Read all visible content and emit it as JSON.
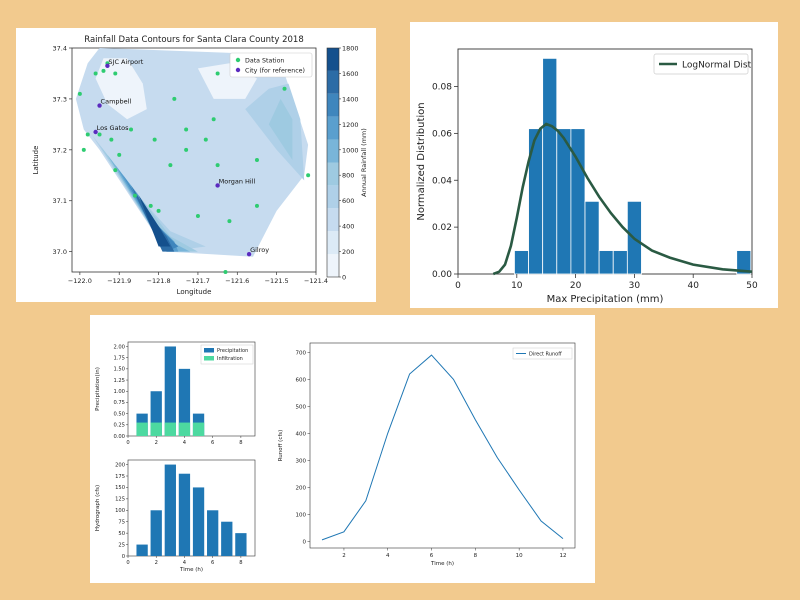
{
  "page": {
    "background": "#f2ca8e"
  },
  "chart_data": [
    {
      "type": "contour",
      "title": "Rainfall Data Contours for Santa Clara County 2018",
      "xlabel": "Longitude",
      "ylabel": "Latitude",
      "xlim": [
        -122.02,
        -121.4
      ],
      "ylim": [
        36.96,
        37.4
      ],
      "xticks": [
        -122.0,
        -121.9,
        -121.8,
        -121.7,
        -121.6,
        -121.5,
        -121.4
      ],
      "xtick_labels": [
        "−122.0",
        "−121.9",
        "−121.8",
        "−121.7",
        "−121.6",
        "−121.5",
        "−121.4"
      ],
      "yticks": [
        37.0,
        37.1,
        37.2,
        37.3,
        37.4
      ],
      "ytick_labels": [
        "37.0",
        "37.1",
        "37.2",
        "37.3",
        "37.4"
      ],
      "colorbar": {
        "label": "Annual Rainfall (mm)",
        "range": [
          0,
          1800
        ],
        "ticks": [
          0,
          200,
          400,
          600,
          800,
          1000,
          1200,
          1400,
          1600,
          1800
        ],
        "levels": [
          "#eef4fb",
          "#dceaf6",
          "#c6dbef",
          "#afd0e8",
          "#9ecae1",
          "#79b5d9",
          "#5a9fce",
          "#3f86bd",
          "#2c6ca6",
          "#14508d"
        ]
      },
      "legend": {
        "placement": "top-right",
        "entries": [
          "Data Station",
          "City (for reference)"
        ]
      },
      "station_color": "#2ecc71",
      "city_color": "#5b2bbf",
      "stations": [
        [
          -122.0,
          37.31
        ],
        [
          -121.96,
          37.35
        ],
        [
          -121.94,
          37.355
        ],
        [
          -121.93,
          37.37
        ],
        [
          -121.91,
          37.35
        ],
        [
          -121.98,
          37.23
        ],
        [
          -121.95,
          37.23
        ],
        [
          -121.99,
          37.2
        ],
        [
          -121.87,
          37.24
        ],
        [
          -121.92,
          37.22
        ],
        [
          -121.9,
          37.19
        ],
        [
          -121.91,
          37.16
        ],
        [
          -121.86,
          37.11
        ],
        [
          -121.82,
          37.09
        ],
        [
          -121.8,
          37.08
        ],
        [
          -121.77,
          37.17
        ],
        [
          -121.73,
          37.2
        ],
        [
          -121.68,
          37.22
        ],
        [
          -121.66,
          37.26
        ],
        [
          -121.73,
          37.24
        ],
        [
          -121.76,
          37.3
        ],
        [
          -121.65,
          37.17
        ],
        [
          -121.62,
          37.06
        ],
        [
          -121.65,
          37.35
        ],
        [
          -121.48,
          37.32
        ],
        [
          -121.55,
          37.18
        ],
        [
          -121.55,
          37.09
        ],
        [
          -121.42,
          37.15
        ],
        [
          -121.7,
          37.07
        ],
        [
          -121.63,
          36.96
        ],
        [
          -121.81,
          37.22
        ]
      ],
      "cities": [
        {
          "name": "SJC Airport",
          "lon": -121.93,
          "lat": 37.365
        },
        {
          "name": "Campbell",
          "lon": -121.95,
          "lat": 37.287
        },
        {
          "name": "Los Gatos",
          "lon": -121.96,
          "lat": 37.235
        },
        {
          "name": "Morgan Hill",
          "lon": -121.65,
          "lat": 37.13
        },
        {
          "name": "Gilroy",
          "lon": -121.57,
          "lat": 36.995
        }
      ],
      "region_outline": [
        [
          -121.95,
          37.4
        ],
        [
          -121.6,
          37.39
        ],
        [
          -121.48,
          37.35
        ],
        [
          -121.42,
          37.21
        ],
        [
          -121.43,
          37.15
        ],
        [
          -121.5,
          37.08
        ],
        [
          -121.56,
          36.99
        ],
        [
          -121.78,
          37.0
        ],
        [
          -121.95,
          37.2
        ],
        [
          -121.99,
          37.24
        ],
        [
          -122.01,
          37.3
        ],
        [
          -121.98,
          37.37
        ]
      ],
      "contours": [
        {
          "level": 1,
          "points": [
            [
              -121.99,
              37.25
            ],
            [
              -121.93,
              37.2
            ],
            [
              -121.86,
              37.12
            ],
            [
              -121.78,
              37.05
            ],
            [
              -121.68,
              37.02
            ],
            [
              -121.6,
              37.03
            ],
            [
              -121.55,
              37.0
            ],
            [
              -121.78,
              37.0
            ]
          ]
        },
        {
          "level": 2,
          "points": [
            [
              -121.97,
              37.23
            ],
            [
              -121.91,
              37.17
            ],
            [
              -121.84,
              37.1
            ],
            [
              -121.77,
              37.04
            ],
            [
              -121.68,
              37.01
            ],
            [
              -121.78,
              37.0
            ]
          ]
        },
        {
          "level": 3,
          "points": [
            [
              -121.95,
              37.21
            ],
            [
              -121.89,
              37.15
            ],
            [
              -121.83,
              37.09
            ],
            [
              -121.77,
              37.03
            ],
            [
              -121.7,
              37.0
            ],
            [
              -121.78,
              37.0
            ]
          ]
        },
        {
          "level": 4,
          "points": [
            [
              -121.93,
              37.19
            ],
            [
              -121.87,
              37.13
            ],
            [
              -121.82,
              37.07
            ],
            [
              -121.77,
              37.02
            ],
            [
              -121.72,
              37.0
            ],
            [
              -121.78,
              37.0
            ]
          ]
        },
        {
          "level": 5,
          "points": [
            [
              -121.91,
              37.17
            ],
            [
              -121.85,
              37.11
            ],
            [
              -121.8,
              37.05
            ],
            [
              -121.76,
              37.02
            ],
            [
              -121.75,
              37.0
            ],
            [
              -121.78,
              37.0
            ]
          ]
        },
        {
          "level": 6,
          "points": [
            [
              -121.89,
              37.15
            ],
            [
              -121.84,
              37.09
            ],
            [
              -121.79,
              37.04
            ],
            [
              -121.75,
              37.01
            ],
            [
              -121.78,
              37.0
            ]
          ]
        },
        {
          "level": 7,
          "points": [
            [
              -121.87,
              37.13
            ],
            [
              -121.82,
              37.07
            ],
            [
              -121.78,
              37.03
            ],
            [
              -121.76,
              37.0
            ],
            [
              -121.79,
              37.0
            ]
          ]
        },
        {
          "level": 8,
          "points": [
            [
              -121.85,
              37.11
            ],
            [
              -121.8,
              37.05
            ],
            [
              -121.77,
              37.01
            ],
            [
              -121.8,
              37.01
            ]
          ]
        }
      ],
      "contours_east": [
        {
          "level": 2,
          "points": [
            [
              -121.43,
              37.14
            ],
            [
              -121.5,
              37.2
            ],
            [
              -121.58,
              37.28
            ],
            [
              -121.52,
              37.32
            ],
            [
              -121.47,
              37.33
            ],
            [
              -121.44,
              37.26
            ]
          ]
        },
        {
          "level": 3,
          "points": [
            [
              -121.46,
              37.18
            ],
            [
              -121.52,
              37.25
            ],
            [
              -121.49,
              37.3
            ],
            [
              -121.46,
              37.26
            ]
          ]
        }
      ],
      "light_spots": [
        {
          "level": 0,
          "points": [
            [
              -121.94,
              37.38
            ],
            [
              -121.88,
              37.38
            ],
            [
              -121.84,
              37.33
            ],
            [
              -121.83,
              37.28
            ],
            [
              -121.88,
              37.26
            ],
            [
              -121.93,
              37.29
            ],
            [
              -121.96,
              37.34
            ]
          ]
        },
        {
          "level": 0,
          "points": [
            [
              -121.7,
              37.36
            ],
            [
              -121.62,
              37.37
            ],
            [
              -121.55,
              37.34
            ],
            [
              -121.58,
              37.3
            ],
            [
              -121.66,
              37.3
            ]
          ]
        }
      ]
    },
    {
      "type": "histogram+line",
      "title": "",
      "xlabel": "Max Precipitation (mm)",
      "ylabel": "Normalized Distribution",
      "xlim": [
        0,
        50
      ],
      "ylim": [
        0,
        0.096
      ],
      "xticks": [
        0,
        10,
        20,
        30,
        40,
        50
      ],
      "yticks": [
        0.0,
        0.02,
        0.04,
        0.06,
        0.08
      ],
      "ytick_labels": [
        "0.00",
        "0.02",
        "0.04",
        "0.06",
        "0.08"
      ],
      "bar_color": "#1f77b4",
      "line_color": "#2a5a43",
      "bin_width": 2.4,
      "bin_starts": [
        9.6,
        12.0,
        14.4,
        16.8,
        19.2,
        21.6,
        24.0,
        26.4,
        28.8,
        31.2,
        47.4
      ],
      "bin_values": [
        0.01,
        0.062,
        0.092,
        0.062,
        0.062,
        0.031,
        0.01,
        0.01,
        0.031,
        0,
        0.01
      ],
      "line": {
        "name": "LogNormal Dist",
        "x": [
          6,
          7,
          8,
          9,
          10,
          11,
          12,
          13,
          14,
          15,
          16,
          17,
          18,
          19,
          20,
          22,
          24,
          26,
          28,
          30,
          33,
          36,
          40,
          45,
          50
        ],
        "y": [
          0.0,
          0.001,
          0.004,
          0.012,
          0.024,
          0.037,
          0.048,
          0.057,
          0.062,
          0.064,
          0.063,
          0.061,
          0.058,
          0.054,
          0.05,
          0.041,
          0.033,
          0.026,
          0.02,
          0.015,
          0.01,
          0.007,
          0.004,
          0.002,
          0.001
        ]
      },
      "legend": {
        "placement": "top-right",
        "entries": [
          "LogNormal Dist"
        ]
      }
    },
    {
      "type": "bar",
      "title": "",
      "xlabel": "Time (h)",
      "ylabel": "Precipitation(in)",
      "xlim": [
        0,
        9
      ],
      "ylim": [
        0,
        2.1
      ],
      "xticks": [
        0,
        2,
        4,
        6,
        8
      ],
      "yticks": [
        0.0,
        0.25,
        0.5,
        0.75,
        1.0,
        1.25,
        1.5,
        1.75,
        2.0
      ],
      "ytick_labels": [
        "0.00",
        "0.25",
        "0.50",
        "0.75",
        "1.00",
        "1.25",
        "1.50",
        "1.75",
        "2.00"
      ],
      "x": [
        1,
        2,
        3,
        4,
        5
      ],
      "series": [
        {
          "name": "Precipitation",
          "color": "#1f77b4",
          "values": [
            0.5,
            1.0,
            2.0,
            1.5,
            0.5
          ]
        },
        {
          "name": "Infiltration",
          "color": "#4dd9a0",
          "values": [
            0.3,
            0.3,
            0.3,
            0.3,
            0.3
          ]
        }
      ],
      "legend": {
        "placement": "top-right",
        "entries": [
          "Precipitation",
          "Infiltration"
        ]
      }
    },
    {
      "type": "bar",
      "title": "",
      "xlabel": "Time (h)",
      "ylabel": "Hydrograph (cfs)",
      "xlim": [
        0,
        9
      ],
      "ylim": [
        0,
        210
      ],
      "xticks": [
        0,
        2,
        4,
        6,
        8
      ],
      "yticks": [
        0,
        25,
        50,
        75,
        100,
        125,
        150,
        175,
        200
      ],
      "ytick_labels": [
        "0",
        "25",
        "50",
        "75",
        "100",
        "125",
        "150",
        "175",
        "200"
      ],
      "bar_color": "#1f77b4",
      "x": [
        1,
        2,
        3,
        4,
        5,
        6,
        7,
        8
      ],
      "values": [
        25,
        100,
        200,
        180,
        150,
        100,
        75,
        50
      ]
    },
    {
      "type": "line",
      "title": "",
      "xlabel": "Time (h)",
      "ylabel": "Runoff (cfs)",
      "xlim": [
        0.45,
        12.55
      ],
      "ylim": [
        -25,
        735
      ],
      "xticks": [
        2,
        4,
        6,
        8,
        10,
        12
      ],
      "yticks": [
        0,
        100,
        200,
        300,
        400,
        500,
        600,
        700
      ],
      "ytick_labels": [
        "0",
        "100",
        "200",
        "300",
        "400",
        "500",
        "600",
        "700"
      ],
      "line_color": "#1f77b4",
      "series": [
        {
          "name": "Direct Runoff",
          "x": [
            1,
            2,
            3,
            4,
            5,
            6,
            7,
            8,
            9,
            10,
            11,
            12
          ],
          "values": [
            5,
            35,
            150,
            400,
            620,
            690,
            600,
            450,
            310,
            190,
            75,
            10
          ]
        }
      ],
      "legend": {
        "placement": "top-right",
        "entries": [
          "Direct Runoff"
        ]
      }
    }
  ]
}
